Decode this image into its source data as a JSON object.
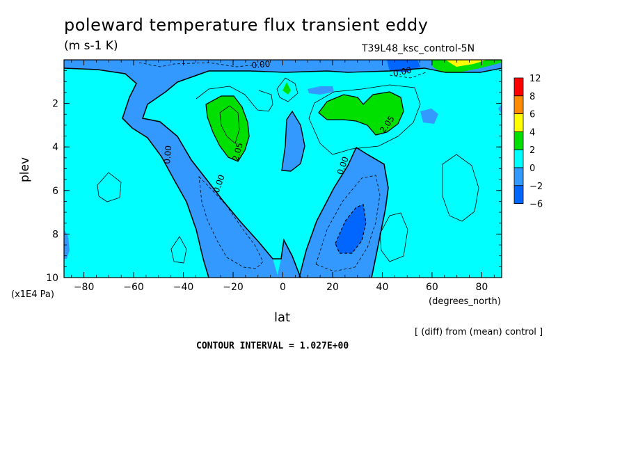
{
  "header": {
    "title": "poleward temperature flux transient eddy",
    "units": "(m s-1 K)",
    "run_name": "T39L48_ksc_control-5N"
  },
  "footer": {
    "y_unit": "(x1E4 Pa)",
    "x_unit": "(degrees_north)",
    "diff_note": "[ (diff) from (mean) control ]",
    "contour_interval": "CONTOUR INTERVAL = 1.027E+00"
  },
  "chart_data": {
    "type": "heatmap",
    "title": "poleward temperature flux transient eddy",
    "subtitle": "(m s-1 K)",
    "xlabel": "lat",
    "ylabel": "plev",
    "xlim": [
      -88,
      88
    ],
    "ylim": [
      10,
      0
    ],
    "x_ticks": [
      -80,
      -60,
      -40,
      -20,
      0,
      20,
      40,
      60,
      80
    ],
    "y_ticks": [
      2,
      4,
      6,
      8,
      10
    ],
    "colorbar": {
      "levels": [
        -6,
        -2,
        0,
        2,
        4,
        6,
        8,
        12
      ],
      "labels": [
        "12",
        "8",
        "6",
        "4",
        "2",
        "0",
        "−2",
        "−6"
      ],
      "colors": [
        "#ff0000",
        "#ff8c00",
        "#ffff00",
        "#00e000",
        "#00ffff",
        "#3399ff",
        "#0066ff"
      ]
    },
    "contour_labels": [
      {
        "text": "0.00",
        "lat": -45,
        "plev": 4.2
      },
      {
        "text": "0.00",
        "lat": -27,
        "plev": 6.2
      },
      {
        "text": "2.05",
        "lat": -18,
        "plev": 4.2
      },
      {
        "text": "0.00",
        "lat": 24,
        "plev": 5.0
      },
      {
        "text": "2.05",
        "lat": 43,
        "plev": 2.6
      },
      {
        "text": "0.00",
        "lat": 50,
        "plev": 0.5
      },
      {
        "text": "0.00",
        "lat": -5,
        "plev": 0.2
      }
    ],
    "colors": {
      "neutral": "#00ffff",
      "negative": "#3399ff",
      "strong_negative": "#0066ff",
      "positive": "#00e000",
      "strong_positive": "#ffff00"
    }
  }
}
